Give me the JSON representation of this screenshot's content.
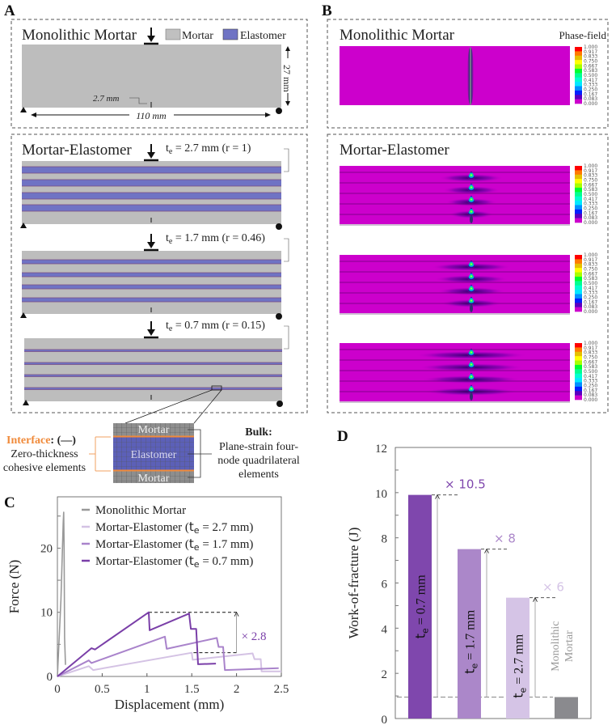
{
  "panels": {
    "a": {
      "letter": "A",
      "monolithic": {
        "title": "Monolithic Mortar",
        "legend": [
          {
            "label": "Mortar",
            "color": "#c0c0c0"
          },
          {
            "label": "Elastomer",
            "color": "#6f73c4"
          }
        ],
        "height_label": "27 mm",
        "length_label": "110 mm",
        "notch_label": "2.7 mm"
      },
      "layered": {
        "title": "Mortar-Elastomer",
        "beams": [
          {
            "symbol": "t",
            "sub": "e",
            "text": " = 2.7 mm (r = 1)"
          },
          {
            "symbol": "t",
            "sub": "e",
            "text": " = 1.7 mm (r = 0.46)"
          },
          {
            "symbol": "t",
            "sub": "e",
            "text": " = 0.7 mm (r = 0.15)"
          }
        ]
      },
      "detail": {
        "interface_label": "Interface",
        "interface_symbol": ": (—)",
        "interface_desc1": "Zero-thickness",
        "interface_desc2": "cohesive elements",
        "mesh_top": "Mortar",
        "mesh_mid": "Elastomer",
        "mesh_bottom": "Mortar",
        "bulk_label": "Bulk:",
        "bulk_desc1": "Plane-strain four-",
        "bulk_desc2": "node quadrilateral",
        "bulk_desc3": "elements",
        "interface_color": "#f08a3a"
      }
    },
    "b": {
      "letter": "B",
      "monolithic_title": "Monolithic Mortar",
      "layered_title": "Mortar-Elastomer",
      "colorbar_title": "Phase-field",
      "colorbar_ticks": [
        "1.000",
        "0.917",
        "0.833",
        "0.750",
        "0.667",
        "0.583",
        "0.500",
        "0.417",
        "0.333",
        "0.250",
        "0.167",
        "0.083",
        "0.000"
      ],
      "colorbar_colors": [
        "#ff0000",
        "#ff7a00",
        "#e6c000",
        "#ffff00",
        "#a8ff00",
        "#00ff30",
        "#00ff90",
        "#00ffd0",
        "#00e8ff",
        "#0090ff",
        "#0020ff",
        "#5a00c0",
        "#cc00cc"
      ]
    }
  },
  "chart_data": [
    {
      "panel": "C",
      "type": "line",
      "xlabel": "Displacement (mm)",
      "ylabel": "Force (N)",
      "xlim": [
        0,
        2.5
      ],
      "ylim": [
        0,
        28
      ],
      "xticks": [
        "0",
        "0.5",
        "1",
        "1.5",
        "2",
        "2.5"
      ],
      "xtick_values": [
        0,
        0.5,
        1,
        1.5,
        2,
        2.5
      ],
      "yticks": [
        "0",
        "10",
        "20"
      ],
      "ytick_values": [
        0,
        10,
        20
      ],
      "legend_position": "top",
      "annotation": "× 2.8",
      "annotation_color": "#7a3fa8",
      "series": [
        {
          "name": "Monolithic Mortar",
          "color": "#999999",
          "x": [
            0,
            0.04,
            0.065,
            0.07,
            0.075,
            0.08,
            0.09
          ],
          "y": [
            0,
            12,
            24,
            25.6,
            20,
            6,
            1.8
          ]
        },
        {
          "name": "Mortar-Elastomer (t_e = 2.7 mm)",
          "label": "Mortar-Elastomer (",
          "sym": "t",
          "sub": "e",
          "tail": " = 2.7 mm)",
          "color": "#d4c2e4",
          "x": [
            0,
            0.35,
            0.4,
            1.5,
            1.51,
            2.18,
            2.2,
            2.27,
            2.28,
            2.5
          ],
          "y": [
            0,
            1.6,
            1.0,
            3.7,
            2.6,
            3.6,
            2.7,
            2.7,
            0.8,
            0.8
          ]
        },
        {
          "name": "Mortar-Elastomer (t_e = 1.7 mm)",
          "label": "Mortar-Elastomer (",
          "sym": "t",
          "sub": "e",
          "tail": " = 1.7 mm)",
          "color": "#a983cb",
          "x": [
            0,
            0.35,
            0.38,
            1.2,
            1.22,
            1.78,
            1.8,
            1.85,
            1.87,
            2.47
          ],
          "y": [
            0,
            2.5,
            2.1,
            6.2,
            4.3,
            6.0,
            4.6,
            4.6,
            1.0,
            1.3
          ]
        },
        {
          "name": "Mortar-Elastomer (t_e = 0.7 mm)",
          "label": "Mortar-Elastomer (",
          "sym": "t",
          "sub": "e",
          "tail": " = 0.7 mm)",
          "color": "#7a3fa8",
          "x": [
            0,
            0.38,
            0.42,
            1.02,
            1.03,
            1.47,
            1.49,
            1.55,
            1.57,
            1.77
          ],
          "y": [
            0,
            4.4,
            4.2,
            10,
            7.2,
            9.8,
            7.4,
            7.4,
            1.9,
            2.0
          ]
        }
      ]
    },
    {
      "panel": "D",
      "type": "bar",
      "ylabel": "Work-of-fracture (J)",
      "ylim": [
        0,
        12
      ],
      "yticks": [
        "0",
        "2",
        "4",
        "6",
        "8",
        "10",
        "12"
      ],
      "ytick_values": [
        0,
        2,
        4,
        6,
        8,
        10,
        12
      ],
      "bars": [
        {
          "sym": "t",
          "sub": "e",
          "tail": " = 0.7 mm",
          "value": 9.9,
          "color": "#7f47ad",
          "factor": "× 10.5",
          "factor_color": "#7f47ad"
        },
        {
          "sym": "t",
          "sub": "e",
          "tail": " = 1.7 mm",
          "value": 7.5,
          "color": "#ab87c9",
          "factor": "× 8",
          "factor_color": "#ab87c9"
        },
        {
          "sym": "t",
          "sub": "e",
          "tail": " = 2.7 mm",
          "value": 5.35,
          "color": "#d5c4e6",
          "factor": "× 6",
          "factor_color": "#d5c4e6"
        },
        {
          "label1": "Monolithic",
          "label2": "Mortar",
          "value": 0.95,
          "color": "#8a8a8e"
        }
      ],
      "baseline_value": 0.95
    }
  ]
}
